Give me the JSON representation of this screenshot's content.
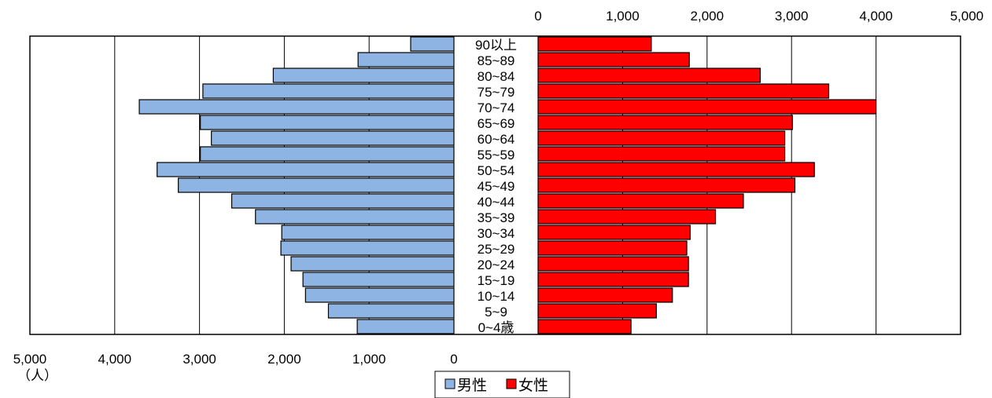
{
  "chart_data": {
    "type": "bar",
    "subtype": "population-pyramid",
    "categories": [
      "0~4歳",
      "5~9",
      "10~14",
      "15~19",
      "20~24",
      "25~29",
      "30~34",
      "35~39",
      "40~44",
      "45~49",
      "50~54",
      "55~59",
      "60~64",
      "65~69",
      "70~74",
      "75~79",
      "80~84",
      "85~89",
      "90以上"
    ],
    "series": [
      {
        "name": "男性",
        "color": "#8db4e2",
        "values": [
          1140,
          1480,
          1750,
          1780,
          1920,
          2040,
          2030,
          2340,
          2620,
          3250,
          3500,
          2990,
          2860,
          2990,
          3710,
          2960,
          2130,
          1130,
          510
        ]
      },
      {
        "name": "女性",
        "color": "#ff0000",
        "values": [
          1100,
          1400,
          1590,
          1780,
          1780,
          1760,
          1800,
          2100,
          2430,
          3040,
          3270,
          2920,
          2920,
          3010,
          4000,
          3440,
          2630,
          1790,
          1340
        ]
      }
    ],
    "x_left_ticks": [
      "5,000",
      "4,000",
      "3,000",
      "2,000",
      "1,000",
      "0"
    ],
    "x_right_ticks": [
      "0",
      "1,000",
      "2,000",
      "3,000",
      "4,000",
      "5,000"
    ],
    "xlim": [
      0,
      5000
    ],
    "unit_label": "（人）",
    "grid": true,
    "legend": {
      "position": "bottom-center",
      "items": [
        "男性",
        "女性"
      ]
    }
  }
}
